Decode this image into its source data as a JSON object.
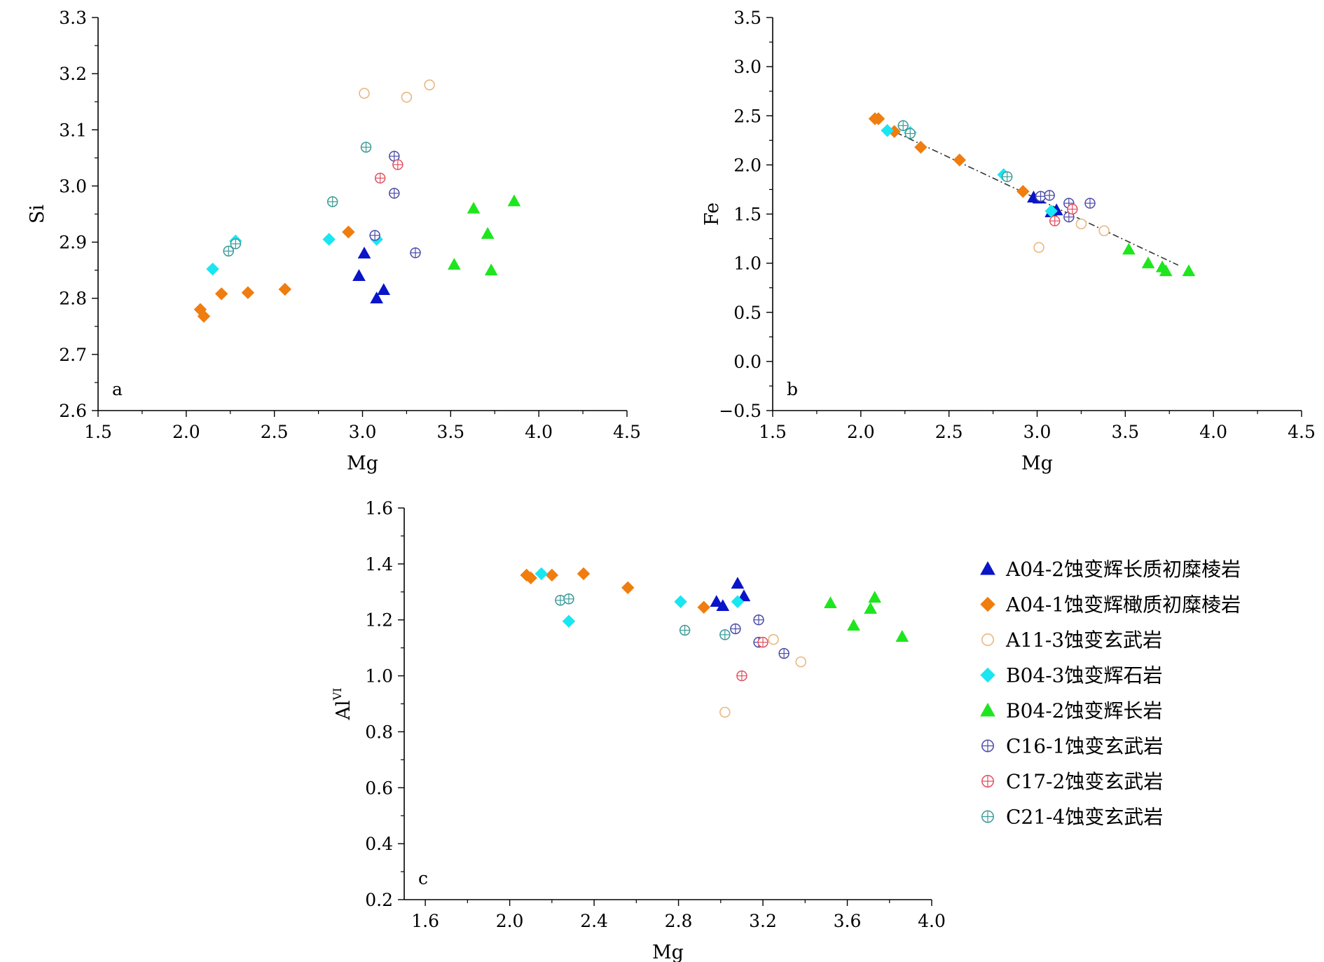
{
  "colors": {
    "A04-2": "#0a14c8",
    "A04-1": "#f07d0f",
    "A11-3": "#e8b882",
    "B04-3": "#19e6f2",
    "B04-2": "#1ee61e",
    "C16-1": "#4a4aa8",
    "C17-2": "#e05060",
    "C21-4": "#3a9a96"
  },
  "legend": {
    "placement": "right of panel c",
    "items": [
      {
        "key": "A04-2",
        "label": "A04-2蚀变辉长质初糜棱岩",
        "marker": "filled-triangle"
      },
      {
        "key": "A04-1",
        "label": "A04-1蚀变辉橄质初糜棱岩",
        "marker": "filled-diamond"
      },
      {
        "key": "A11-3",
        "label": "A11-3蚀变玄武岩",
        "marker": "open-circle"
      },
      {
        "key": "B04-3",
        "label": "B04-3蚀变辉石岩",
        "marker": "filled-diamond"
      },
      {
        "key": "B04-2",
        "label": "B04-2蚀变辉长岩",
        "marker": "filled-triangle"
      },
      {
        "key": "C16-1",
        "label": "C16-1蚀变玄武岩",
        "marker": "crossed-circle"
      },
      {
        "key": "C17-2",
        "label": "C17-2蚀变玄武岩",
        "marker": "crossed-circle"
      },
      {
        "key": "C21-4",
        "label": "C21-4蚀变玄武岩",
        "marker": "crossed-circle"
      }
    ]
  },
  "chart_data": [
    {
      "type": "scatter",
      "panel": "a",
      "xlabel": "Mg",
      "ylabel": "Si",
      "xlim": [
        1.5,
        4.5
      ],
      "ylim": [
        2.6,
        3.3
      ],
      "xticks": [
        1.5,
        2.0,
        2.5,
        3.0,
        3.5,
        4.0,
        4.5
      ],
      "xtick_labels": [
        "1.5",
        "2.0",
        "2.5",
        "3.0",
        "3.5",
        "4.0",
        "4.5"
      ],
      "yticks": [
        2.6,
        2.7,
        2.8,
        2.9,
        3.0,
        3.1,
        3.2,
        3.3
      ],
      "ytick_labels": [
        "2.6",
        "2.7",
        "2.8",
        "2.9",
        "3.0",
        "3.1",
        "3.2",
        "3.3"
      ],
      "grid": false,
      "series": [
        {
          "key": "A04-2",
          "points": [
            [
              2.98,
              2.84
            ],
            [
              3.01,
              2.88
            ],
            [
              3.08,
              2.8
            ],
            [
              3.12,
              2.815
            ]
          ]
        },
        {
          "key": "A04-1",
          "points": [
            [
              2.08,
              2.78
            ],
            [
              2.1,
              2.768
            ],
            [
              2.2,
              2.808
            ],
            [
              2.35,
              2.81
            ],
            [
              2.56,
              2.816
            ],
            [
              2.92,
              2.918
            ]
          ]
        },
        {
          "key": "A11-3",
          "points": [
            [
              3.01,
              3.165
            ],
            [
              3.25,
              3.158
            ],
            [
              3.38,
              3.18
            ]
          ]
        },
        {
          "key": "B04-3",
          "points": [
            [
              2.15,
              2.852
            ],
            [
              2.28,
              2.902
            ],
            [
              2.81,
              2.905
            ],
            [
              3.08,
              2.905
            ]
          ]
        },
        {
          "key": "B04-2",
          "points": [
            [
              3.52,
              2.86
            ],
            [
              3.63,
              2.96
            ],
            [
              3.71,
              2.915
            ],
            [
              3.73,
              2.85
            ],
            [
              3.86,
              2.973
            ]
          ]
        },
        {
          "key": "C16-1",
          "points": [
            [
              3.07,
              2.912
            ],
            [
              3.18,
              3.053
            ],
            [
              3.18,
              2.987
            ],
            [
              3.3,
              2.881
            ]
          ]
        },
        {
          "key": "C17-2",
          "points": [
            [
              3.1,
              3.014
            ],
            [
              3.2,
              3.038
            ]
          ]
        },
        {
          "key": "C21-4",
          "points": [
            [
              2.24,
              2.884
            ],
            [
              2.28,
              2.897
            ],
            [
              2.83,
              2.972
            ],
            [
              3.02,
              3.069
            ]
          ]
        }
      ]
    },
    {
      "type": "scatter",
      "panel": "b",
      "xlabel": "Mg",
      "ylabel": "Fe",
      "xlim": [
        1.5,
        4.5
      ],
      "ylim": [
        -0.5,
        3.5
      ],
      "xticks": [
        1.5,
        2.0,
        2.5,
        3.0,
        3.5,
        4.0,
        4.5
      ],
      "xtick_labels": [
        "1.5",
        "2.0",
        "2.5",
        "3.0",
        "3.5",
        "4.0",
        "4.5"
      ],
      "yticks": [
        -0.5,
        0.0,
        0.5,
        1.0,
        1.5,
        2.0,
        2.5,
        3.0,
        3.5
      ],
      "ytick_labels": [
        "−0.5",
        "0.0",
        "0.5",
        "1.0",
        "1.5",
        "2.0",
        "2.5",
        "3.0",
        "3.5"
      ],
      "grid": false,
      "trendline": {
        "from": [
          2.2,
          2.33
        ],
        "to": [
          3.8,
          0.98
        ],
        "style": "dash-dot"
      },
      "series": [
        {
          "key": "A04-2",
          "points": [
            [
              2.98,
              1.67
            ],
            [
              3.01,
              1.66
            ],
            [
              3.08,
              1.52
            ],
            [
              3.11,
              1.54
            ]
          ]
        },
        {
          "key": "A04-1",
          "points": [
            [
              2.08,
              2.47
            ],
            [
              2.1,
              2.47
            ],
            [
              2.19,
              2.34
            ],
            [
              2.34,
              2.18
            ],
            [
              2.56,
              2.05
            ],
            [
              2.92,
              1.73
            ]
          ]
        },
        {
          "key": "A11-3",
          "points": [
            [
              3.01,
              1.16
            ],
            [
              3.25,
              1.4
            ],
            [
              3.38,
              1.33
            ]
          ]
        },
        {
          "key": "B04-3",
          "points": [
            [
              2.15,
              2.35
            ],
            [
              2.28,
              2.33
            ],
            [
              2.81,
              1.9
            ],
            [
              3.08,
              1.53
            ]
          ]
        },
        {
          "key": "B04-2",
          "points": [
            [
              3.52,
              1.14
            ],
            [
              3.63,
              1.0
            ],
            [
              3.71,
              0.96
            ],
            [
              3.73,
              0.92
            ],
            [
              3.86,
              0.92
            ]
          ]
        },
        {
          "key": "C16-1",
          "points": [
            [
              3.02,
              1.68
            ],
            [
              3.07,
              1.69
            ],
            [
              3.18,
              1.61
            ],
            [
              3.18,
              1.47
            ],
            [
              3.3,
              1.61
            ]
          ]
        },
        {
          "key": "C17-2",
          "points": [
            [
              3.1,
              1.43
            ],
            [
              3.2,
              1.55
            ]
          ]
        },
        {
          "key": "C21-4",
          "points": [
            [
              2.24,
              2.4
            ],
            [
              2.28,
              2.32
            ],
            [
              2.83,
              1.88
            ]
          ]
        }
      ]
    },
    {
      "type": "scatter",
      "panel": "c",
      "xlabel": "Mg",
      "ylabel": "Al",
      "ylabel_sup": "VI",
      "xlim": [
        1.5,
        4.0
      ],
      "ylim": [
        0.2,
        1.6
      ],
      "xticks": [
        1.6,
        2.0,
        2.4,
        2.8,
        3.2,
        3.6,
        4.0
      ],
      "xtick_labels": [
        "1.6",
        "2.0",
        "2.4",
        "2.8",
        "3.2",
        "3.6",
        "4.0"
      ],
      "yticks": [
        0.2,
        0.4,
        0.6,
        0.8,
        1.0,
        1.2,
        1.4,
        1.6
      ],
      "ytick_labels": [
        "0.2",
        "0.4",
        "0.6",
        "0.8",
        "1.0",
        "1.2",
        "1.4",
        "1.6"
      ],
      "grid": false,
      "series": [
        {
          "key": "A04-2",
          "points": [
            [
              2.98,
              1.265
            ],
            [
              3.01,
              1.25
            ],
            [
              3.08,
              1.33
            ],
            [
              3.11,
              1.285
            ]
          ]
        },
        {
          "key": "A04-1",
          "points": [
            [
              2.08,
              1.36
            ],
            [
              2.1,
              1.35
            ],
            [
              2.2,
              1.36
            ],
            [
              2.35,
              1.365
            ],
            [
              2.56,
              1.315
            ],
            [
              2.92,
              1.245
            ]
          ]
        },
        {
          "key": "A11-3",
          "points": [
            [
              3.02,
              0.87
            ],
            [
              3.25,
              1.13
            ],
            [
              3.38,
              1.05
            ]
          ]
        },
        {
          "key": "B04-3",
          "points": [
            [
              2.15,
              1.365
            ],
            [
              2.28,
              1.195
            ],
            [
              2.81,
              1.265
            ],
            [
              3.08,
              1.265
            ]
          ]
        },
        {
          "key": "B04-2",
          "points": [
            [
              3.52,
              1.26
            ],
            [
              3.63,
              1.18
            ],
            [
              3.71,
              1.24
            ],
            [
              3.73,
              1.28
            ],
            [
              3.86,
              1.14
            ]
          ]
        },
        {
          "key": "C16-1",
          "points": [
            [
              3.07,
              1.168
            ],
            [
              3.18,
              1.2
            ],
            [
              3.18,
              1.12
            ],
            [
              3.3,
              1.08
            ]
          ]
        },
        {
          "key": "C17-2",
          "points": [
            [
              3.1,
              1.0
            ],
            [
              3.2,
              1.12
            ]
          ]
        },
        {
          "key": "C21-4",
          "points": [
            [
              2.24,
              1.27
            ],
            [
              2.28,
              1.275
            ],
            [
              2.83,
              1.163
            ],
            [
              3.02,
              1.147
            ]
          ]
        }
      ]
    }
  ]
}
